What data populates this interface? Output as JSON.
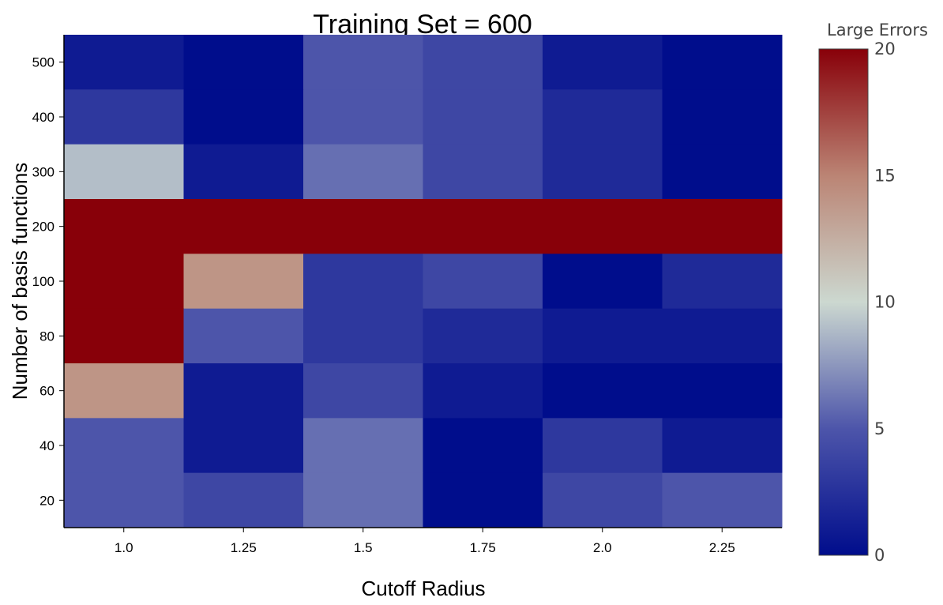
{
  "chart_data": {
    "type": "heatmap",
    "title": "Training Set = 600",
    "xlabel": "Cutoff Radius",
    "ylabel": "Number of basis functions",
    "x_categories": [
      "1.0",
      "1.25",
      "1.5",
      "1.75",
      "2.0",
      "2.25"
    ],
    "y_categories": [
      "500",
      "400",
      "300",
      "200",
      "100",
      "80",
      "60",
      "40",
      "20"
    ],
    "values": [
      [
        1,
        0,
        5,
        4,
        1,
        0
      ],
      [
        3,
        0,
        5,
        4,
        2,
        0
      ],
      [
        9,
        1,
        6,
        4,
        2,
        0
      ],
      [
        20,
        20,
        20,
        20,
        20,
        20
      ],
      [
        20,
        14,
        3,
        4,
        0,
        2
      ],
      [
        20,
        5,
        3,
        2,
        1,
        1
      ],
      [
        14,
        1,
        4,
        1,
        0,
        0
      ],
      [
        5,
        1,
        6,
        0,
        3,
        1
      ],
      [
        5,
        4,
        6,
        0,
        4,
        5
      ]
    ],
    "colorbar": {
      "title": "Large Errors",
      "range": [
        0,
        20
      ],
      "ticks": [
        0,
        5,
        10,
        15,
        20
      ],
      "colorscale": [
        [
          0.0,
          "#000d8c"
        ],
        [
          0.25,
          "#4d55aa"
        ],
        [
          0.5,
          "#ccd8d0"
        ],
        [
          0.75,
          "#bb8474"
        ],
        [
          1.0,
          "#880009"
        ]
      ]
    }
  }
}
